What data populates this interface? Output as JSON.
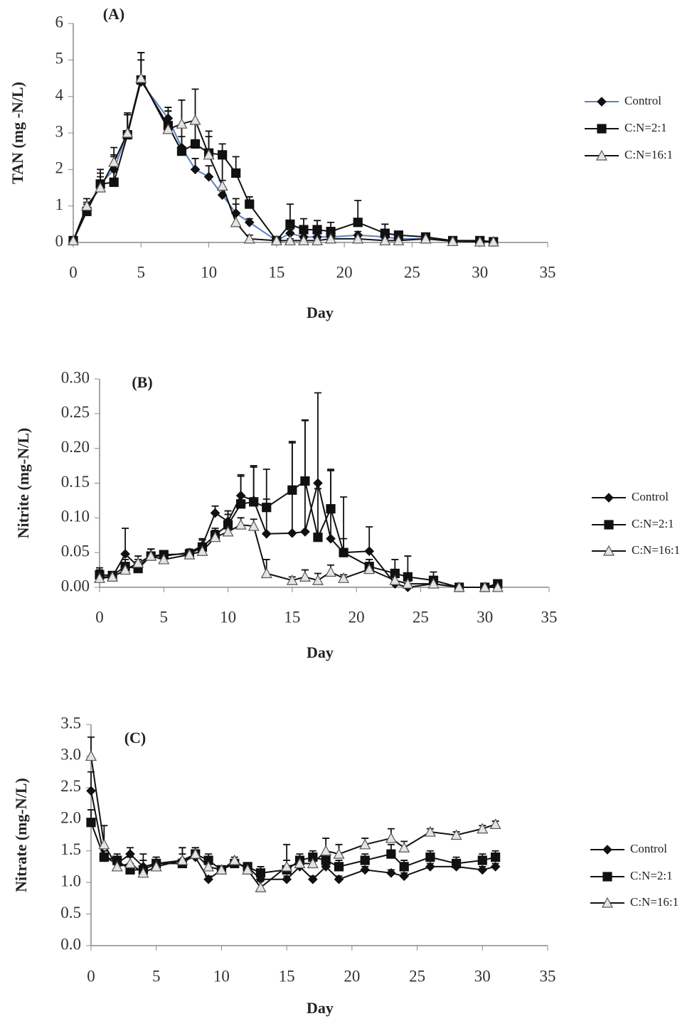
{
  "chart_data": [
    {
      "type": "line",
      "label": "(A)",
      "ylabel": "TAN (mg -N/L)",
      "xlabel": "Day",
      "x": [
        0,
        1,
        2,
        3,
        4,
        5,
        7,
        8,
        9,
        10,
        11,
        12,
        13,
        15,
        16,
        17,
        18,
        19,
        21,
        23,
        24,
        26,
        28,
        30,
        31
      ],
      "xlim": [
        0,
        35
      ],
      "xticks": [
        0,
        5,
        10,
        15,
        20,
        25,
        30,
        35
      ],
      "ylim": [
        0,
        6
      ],
      "yticks": [
        0,
        1,
        2,
        3,
        4,
        5,
        6
      ],
      "series": [
        {
          "name": "Control",
          "color": "#5b82bd",
          "marker": "diamond",
          "values": [
            0.05,
            0.9,
            1.6,
            2.0,
            3.0,
            4.4,
            3.4,
            2.6,
            2.0,
            1.8,
            1.3,
            0.8,
            0.55,
            0.05,
            0.25,
            0.15,
            0.15,
            0.15,
            0.2,
            0.15,
            0.1,
            0.1,
            0.05,
            0.02,
            0.02
          ],
          "errors": [
            0,
            0.2,
            0.3,
            0.4,
            0.5,
            0.6,
            0.2,
            0.3,
            0.3,
            0.3,
            0.4,
            0.4,
            0.1,
            0,
            0.1,
            0.1,
            0.1,
            0.1,
            0.1,
            0.1,
            0.05,
            0.05,
            0,
            0,
            0
          ]
        },
        {
          "name": "C:N=2:1",
          "color": "#111111",
          "marker": "square",
          "values": [
            0.05,
            0.85,
            1.6,
            1.65,
            2.95,
            4.45,
            3.2,
            2.5,
            2.7,
            2.45,
            2.4,
            1.9,
            1.05,
            0.05,
            0.5,
            0.35,
            0.35,
            0.3,
            0.55,
            0.25,
            0.2,
            0.15,
            0.05,
            0.05,
            0.02
          ],
          "errors": [
            0,
            0.2,
            0.4,
            0.7,
            0.6,
            0.75,
            0.5,
            0.7,
            0.6,
            0.6,
            0.3,
            0.45,
            0.2,
            0.05,
            0.55,
            0.3,
            0.25,
            0.25,
            0.6,
            0.25,
            0.1,
            0.1,
            0.05,
            0.05,
            0
          ]
        },
        {
          "name": "C:N=16:1",
          "color": "#111111",
          "marker": "triangle",
          "values": [
            0.05,
            1.0,
            1.5,
            2.2,
            3.0,
            4.5,
            3.1,
            3.25,
            3.35,
            2.4,
            1.55,
            0.55,
            0.1,
            0.05,
            0.05,
            0.05,
            0.05,
            0.1,
            0.1,
            0.05,
            0.05,
            0.1,
            0.03,
            0.02,
            0.02
          ],
          "errors": [
            0,
            0.2,
            0.3,
            0.4,
            0.5,
            0.7,
            0.5,
            0.65,
            0.85,
            0.5,
            0.9,
            0.5,
            0.1,
            0.05,
            0.05,
            0.05,
            0.05,
            0.05,
            0.05,
            0.05,
            0.05,
            0.05,
            0.02,
            0.02,
            0.02
          ]
        }
      ]
    },
    {
      "type": "line",
      "label": "(B)",
      "ylabel": "Nitrite  (mg-N/L)",
      "xlabel": "Day",
      "x": [
        0,
        1,
        2,
        3,
        4,
        5,
        7,
        8,
        9,
        10,
        11,
        12,
        13,
        15,
        16,
        17,
        18,
        19,
        21,
        23,
        24,
        26,
        28,
        30,
        31
      ],
      "xlim": [
        0,
        35
      ],
      "xticks": [
        0,
        5,
        10,
        15,
        20,
        25,
        30,
        35
      ],
      "ylim": [
        0,
        0.3
      ],
      "yticks": [
        {
          "value": 0,
          "label": "0.00"
        },
        0.05,
        {
          "value": 0.1,
          "label": "0.10"
        },
        0.15,
        {
          "value": 0.2,
          "label": "0.20"
        },
        0.25,
        {
          "value": 0.3,
          "label": "0.30"
        }
      ],
      "series": [
        {
          "name": "Control",
          "color": "#111111",
          "marker": "diamond",
          "values": [
            0.015,
            0.015,
            0.048,
            0.03,
            0.045,
            0.045,
            0.05,
            0.06,
            0.107,
            0.095,
            0.132,
            0.125,
            0.077,
            0.078,
            0.08,
            0.15,
            0.07,
            0.05,
            0.052,
            0.005,
            0.0,
            0.005,
            0.0,
            0.0,
            0.003
          ],
          "errors": [
            0.01,
            0.005,
            0.037,
            0.01,
            0.01,
            0.005,
            0.005,
            0.01,
            0.01,
            0.01,
            0.03,
            0.05,
            0.05,
            0.13,
            0.16,
            0.13,
            0.1,
            0.08,
            0.035,
            0.01,
            0.005,
            0.005,
            0,
            0,
            0.003
          ]
        },
        {
          "name": "C:N=2:1",
          "color": "#111111",
          "marker": "square",
          "values": [
            0.018,
            0.017,
            0.03,
            0.027,
            0.045,
            0.047,
            0.048,
            0.058,
            0.075,
            0.09,
            0.12,
            0.123,
            0.115,
            0.14,
            0.153,
            0.072,
            0.113,
            0.05,
            0.03,
            0.02,
            0.015,
            0.01,
            0.0,
            0.0,
            0.005
          ],
          "errors": [
            0.01,
            0.005,
            0.01,
            0.01,
            0.01,
            0.005,
            0.005,
            0.01,
            0.01,
            0.02,
            0.04,
            0.05,
            0.055,
            0.07,
            0.088,
            0.07,
            0.055,
            0.02,
            0.01,
            0.02,
            0.03,
            0.012,
            0,
            0,
            0.003
          ]
        },
        {
          "name": "C:N=16:1",
          "color": "#111111",
          "marker": "triangle",
          "values": [
            0.013,
            0.015,
            0.025,
            0.035,
            0.045,
            0.04,
            0.047,
            0.052,
            0.072,
            0.08,
            0.09,
            0.088,
            0.02,
            0.01,
            0.015,
            0.01,
            0.022,
            0.013,
            0.026,
            0.01,
            0.005,
            0.005,
            0.0,
            0.0,
            0.0
          ],
          "errors": [
            0.005,
            0.005,
            0.01,
            0.01,
            0.01,
            0.005,
            0.005,
            0.005,
            0.01,
            0.01,
            0.01,
            0.01,
            0.02,
            0.005,
            0.01,
            0.01,
            0.01,
            0.005,
            0.005,
            0.005,
            0.005,
            0.005,
            0,
            0,
            0
          ]
        }
      ]
    },
    {
      "type": "line",
      "label": "(C)",
      "ylabel": "Nitrate (mg-N/L)",
      "xlabel": "Day",
      "x": [
        0,
        1,
        2,
        3,
        4,
        5,
        7,
        8,
        9,
        10,
        11,
        12,
        13,
        15,
        16,
        17,
        18,
        19,
        21,
        23,
        24,
        26,
        28,
        30,
        31
      ],
      "xlim": [
        0,
        35
      ],
      "xticks": [
        0,
        5,
        10,
        15,
        20,
        25,
        30,
        35
      ],
      "ylim": [
        0,
        3.5
      ],
      "yticks": [
        {
          "value": 0,
          "label": "0.0"
        },
        0.5,
        {
          "value": 1,
          "label": "1.0"
        },
        1.5,
        {
          "value": 2,
          "label": "2.0"
        },
        2.5,
        {
          "value": 3,
          "label": "3.0"
        },
        3.5
      ],
      "series": [
        {
          "name": "Control",
          "color": "#111111",
          "marker": "diamond",
          "values": [
            2.45,
            1.4,
            1.3,
            1.45,
            1.25,
            1.3,
            1.35,
            1.4,
            1.05,
            1.2,
            1.3,
            1.25,
            1.05,
            1.05,
            1.25,
            1.05,
            1.25,
            1.05,
            1.2,
            1.15,
            1.1,
            1.25,
            1.25,
            1.2,
            1.25
          ],
          "errors": [
            0.3,
            0.1,
            0.1,
            0.1,
            0.1,
            0.1,
            0.1,
            0.1,
            0.05,
            0.05,
            0.05,
            0.05,
            0.05,
            0.05,
            0.05,
            0.05,
            0.05,
            0.05,
            0.05,
            0.05,
            0.05,
            0.05,
            0.05,
            0.05,
            0.05
          ]
        },
        {
          "name": "C:N=2:1",
          "color": "#111111",
          "marker": "square",
          "values": [
            1.95,
            1.4,
            1.35,
            1.2,
            1.2,
            1.3,
            1.3,
            1.45,
            1.35,
            1.2,
            1.3,
            1.25,
            1.15,
            1.2,
            1.35,
            1.4,
            1.35,
            1.25,
            1.35,
            1.45,
            1.25,
            1.4,
            1.3,
            1.35,
            1.4
          ],
          "errors": [
            0.2,
            0.1,
            0.1,
            0.1,
            0.25,
            0.1,
            0.25,
            0.1,
            0.1,
            0.05,
            0.05,
            0.05,
            0.1,
            0.4,
            0.1,
            0.1,
            0.1,
            0.1,
            0.1,
            0.15,
            0.1,
            0.1,
            0.1,
            0.1,
            0.1
          ]
        },
        {
          "name": "C:N=16:1",
          "color": "#111111",
          "marker": "triangle",
          "values": [
            3.0,
            1.6,
            1.25,
            1.3,
            1.15,
            1.25,
            1.35,
            1.45,
            1.25,
            1.2,
            1.35,
            1.2,
            0.92,
            1.25,
            1.3,
            1.3,
            1.5,
            1.45,
            1.6,
            1.7,
            1.55,
            1.8,
            1.75,
            1.85,
            1.92
          ],
          "errors": [
            0.3,
            0.3,
            0.1,
            0.1,
            0.1,
            0.1,
            0.2,
            0.1,
            0.1,
            0.05,
            0.05,
            0.05,
            0.1,
            0.1,
            0.1,
            0.1,
            0.2,
            0.15,
            0.1,
            0.15,
            0.1,
            0.05,
            0.05,
            0.05,
            0.05
          ]
        }
      ]
    }
  ]
}
